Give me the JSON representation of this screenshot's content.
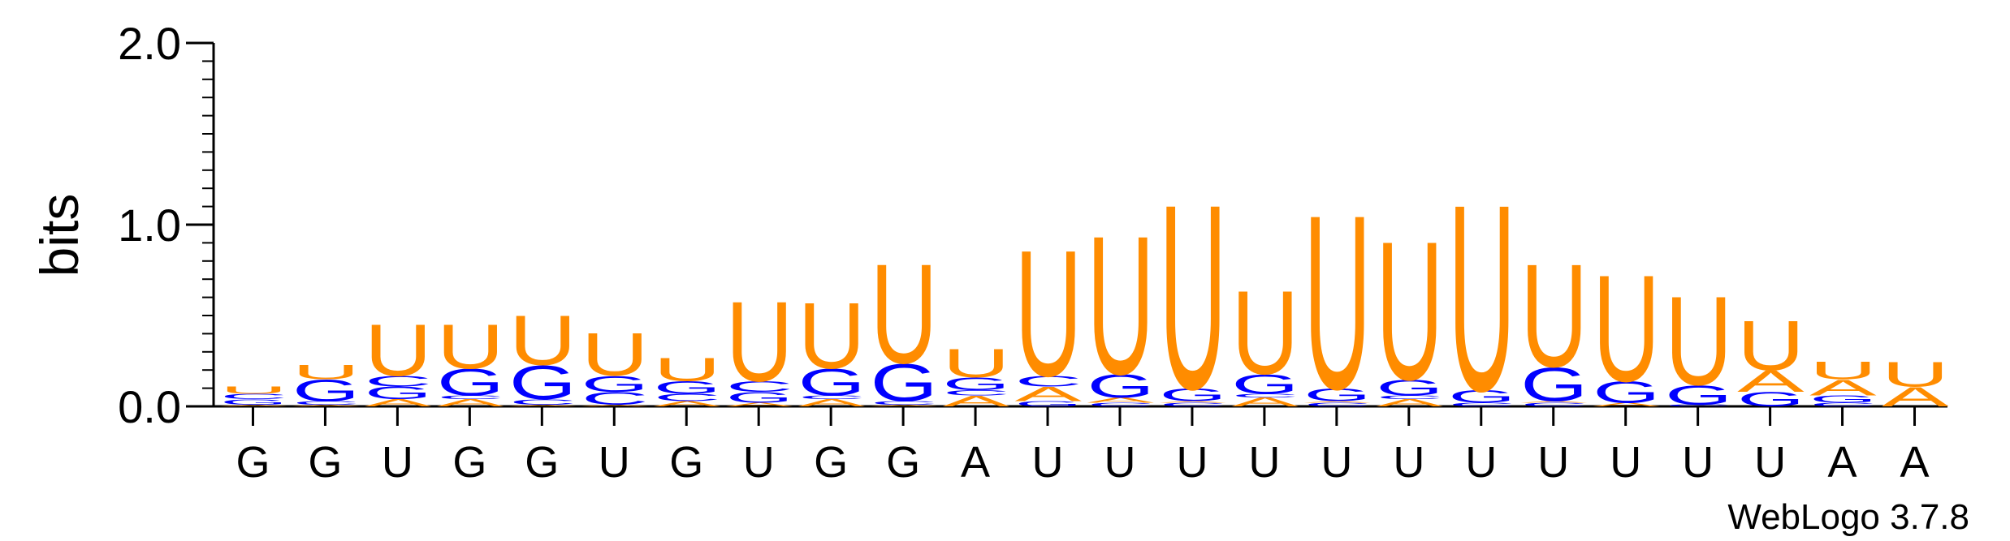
{
  "chart_data": {
    "type": "sequence-logo",
    "ylabel": "bits",
    "ylim": [
      0,
      2.0
    ],
    "y_ticks": [
      "0.0",
      "1.0",
      "2.0"
    ],
    "x_labels": [
      "G",
      "G",
      "U",
      "G",
      "G",
      "U",
      "G",
      "U",
      "G",
      "G",
      "A",
      "U",
      "U",
      "U",
      "U",
      "U",
      "U",
      "U",
      "U",
      "U",
      "U",
      "U",
      "A",
      "A"
    ],
    "colors": {
      "A": "#FF8C00",
      "U": "#FF8C00",
      "G": "#0000FF",
      "C": "#0000FF"
    },
    "positions": [
      [
        [
          "A",
          0.01
        ],
        [
          "G",
          0.03
        ],
        [
          "C",
          0.03
        ],
        [
          "U",
          0.04
        ]
      ],
      [
        [
          "A",
          0.01
        ],
        [
          "C",
          0.02
        ],
        [
          "G",
          0.12
        ],
        [
          "U",
          0.08
        ]
      ],
      [
        [
          "A",
          0.04
        ],
        [
          "G",
          0.07
        ],
        [
          "C",
          0.06
        ],
        [
          "U",
          0.29
        ]
      ],
      [
        [
          "A",
          0.04
        ],
        [
          "C",
          0.02
        ],
        [
          "G",
          0.15
        ],
        [
          "U",
          0.25
        ]
      ],
      [
        [
          "A",
          0.01
        ],
        [
          "C",
          0.03
        ],
        [
          "G",
          0.19
        ],
        [
          "U",
          0.28
        ]
      ],
      [
        [
          "A",
          0.01
        ],
        [
          "C",
          0.07
        ],
        [
          "G",
          0.09
        ],
        [
          "U",
          0.24
        ]
      ],
      [
        [
          "A",
          0.03
        ],
        [
          "C",
          0.04
        ],
        [
          "G",
          0.07
        ],
        [
          "U",
          0.13
        ]
      ],
      [
        [
          "A",
          0.02
        ],
        [
          "G",
          0.06
        ],
        [
          "C",
          0.06
        ],
        [
          "U",
          0.45
        ]
      ],
      [
        [
          "A",
          0.04
        ],
        [
          "C",
          0.02
        ],
        [
          "G",
          0.15
        ],
        [
          "U",
          0.37
        ]
      ],
      [
        [
          "A",
          0.01
        ],
        [
          "C",
          0.02
        ],
        [
          "G",
          0.21
        ],
        [
          "U",
          0.56
        ]
      ],
      [
        [
          "A",
          0.06
        ],
        [
          "C",
          0.03
        ],
        [
          "G",
          0.07
        ],
        [
          "U",
          0.16
        ]
      ],
      [
        [
          "G",
          0.03
        ],
        [
          "A",
          0.08
        ],
        [
          "C",
          0.06
        ],
        [
          "U",
          0.71
        ]
      ],
      [
        [
          "C",
          0.02
        ],
        [
          "A",
          0.03
        ],
        [
          "G",
          0.13
        ],
        [
          "U",
          0.78
        ]
      ],
      [
        [
          "C",
          0.02
        ],
        [
          "A",
          0.01
        ],
        [
          "G",
          0.07
        ],
        [
          "U",
          1.04
        ]
      ],
      [
        [
          "A",
          0.05
        ],
        [
          "C",
          0.02
        ],
        [
          "G",
          0.11
        ],
        [
          "U",
          0.47
        ]
      ],
      [
        [
          "C",
          0.02
        ],
        [
          "A",
          0.01
        ],
        [
          "G",
          0.07
        ],
        [
          "U",
          0.98
        ]
      ],
      [
        [
          "A",
          0.04
        ],
        [
          "C",
          0.02
        ],
        [
          "G",
          0.09
        ],
        [
          "U",
          0.78
        ]
      ],
      [
        [
          "C",
          0.02
        ],
        [
          "G",
          0.07
        ],
        [
          "U",
          1.05
        ]
      ],
      [
        [
          "C",
          0.02
        ],
        [
          "A",
          0.01
        ],
        [
          "G",
          0.19
        ],
        [
          "U",
          0.58
        ]
      ],
      [
        [
          "A",
          0.02
        ],
        [
          "G",
          0.12
        ],
        [
          "U",
          0.6
        ]
      ],
      [
        [
          "C",
          0.01
        ],
        [
          "G",
          0.11
        ],
        [
          "U",
          0.5
        ]
      ],
      [
        [
          "G",
          0.08
        ],
        [
          "A",
          0.12
        ],
        [
          "U",
          0.28
        ]
      ],
      [
        [
          "C",
          0.02
        ],
        [
          "G",
          0.04
        ],
        [
          "A",
          0.09
        ],
        [
          "U",
          0.1
        ]
      ],
      [
        [
          "A",
          0.11
        ],
        [
          "U",
          0.14
        ]
      ]
    ]
  },
  "credit": "WebLogo 3.7.8"
}
